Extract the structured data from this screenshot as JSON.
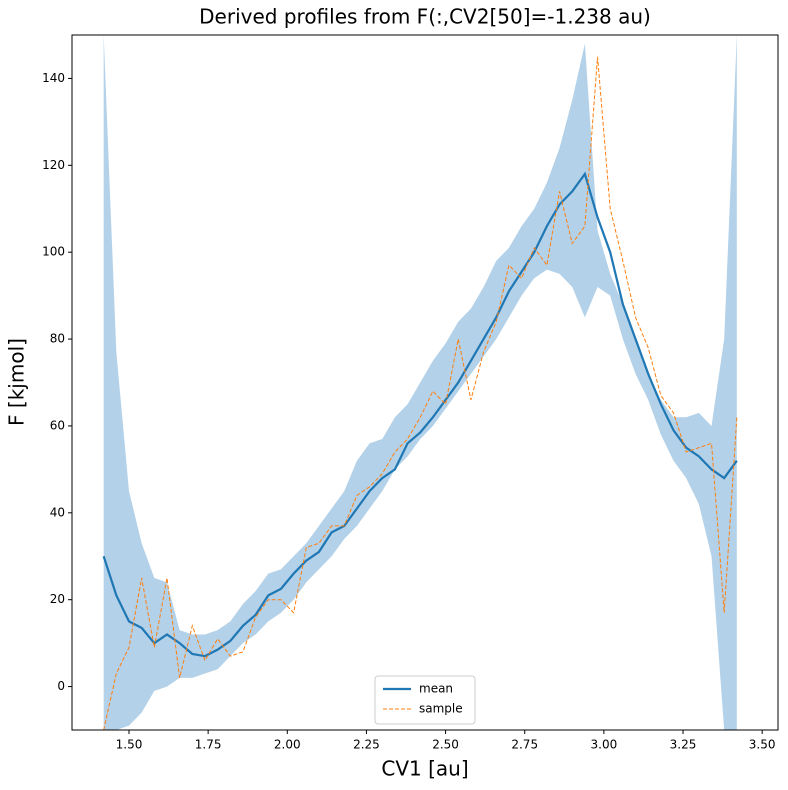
{
  "chart_data": {
    "type": "line",
    "title": "Derived profiles from F(:,CV2[50]=-1.238 au)",
    "x_label": "CV1 [au]",
    "y_label": "F [kjmol]",
    "x": [
      1.42,
      1.46,
      1.5,
      1.54,
      1.58,
      1.62,
      1.66,
      1.7,
      1.74,
      1.78,
      1.82,
      1.86,
      1.9,
      1.94,
      1.98,
      2.02,
      2.06,
      2.1,
      2.14,
      2.18,
      2.22,
      2.26,
      2.3,
      2.34,
      2.38,
      2.42,
      2.46,
      2.5,
      2.54,
      2.58,
      2.62,
      2.66,
      2.7,
      2.74,
      2.78,
      2.82,
      2.86,
      2.9,
      2.94,
      2.98,
      3.02,
      3.06,
      3.1,
      3.14,
      3.18,
      3.22,
      3.26,
      3.3,
      3.34,
      3.38,
      3.42
    ],
    "series": [
      {
        "name": "mean",
        "color": "#1f77b4",
        "values": [
          30,
          21,
          15,
          13.5,
          10,
          12,
          10,
          7.5,
          7,
          8.5,
          10.5,
          14,
          16.5,
          21,
          22.5,
          26,
          29,
          31,
          35.5,
          37,
          41,
          45,
          48,
          50,
          56,
          58.5,
          62,
          66,
          70,
          75,
          80,
          85,
          91,
          95.5,
          100,
          106,
          111,
          114,
          118,
          108,
          100,
          88,
          80,
          72,
          65,
          59,
          55,
          53,
          50,
          48,
          52
        ]
      },
      {
        "name": "sample",
        "color": "#ff7f0e",
        "dashed": true,
        "values": [
          -10,
          3,
          9,
          25,
          9,
          25,
          2,
          14,
          6,
          11,
          7,
          8,
          16,
          20,
          20,
          17,
          32,
          33,
          37,
          37,
          44,
          46,
          49,
          54,
          57,
          62,
          68,
          65,
          80,
          66,
          77,
          84,
          97,
          94,
          101,
          97,
          114,
          102,
          106,
          145,
          110,
          98,
          85,
          78,
          67,
          63,
          54,
          55,
          56,
          17,
          62
        ]
      }
    ],
    "band": {
      "color": "#b3d1e8",
      "upper": [
        150,
        77,
        45,
        33,
        25,
        24,
        13,
        12,
        12,
        13,
        15,
        19,
        22,
        26,
        27,
        30,
        33,
        37,
        41,
        45,
        52,
        56,
        57,
        62,
        65,
        70,
        75,
        79,
        84,
        87,
        92,
        98,
        101,
        106,
        110,
        116,
        124,
        135,
        148,
        105,
        95,
        88,
        80,
        72,
        66,
        62,
        62,
        63,
        60,
        80,
        150
      ],
      "lower": [
        -10,
        -10,
        -9,
        -6,
        -1,
        0,
        2,
        2,
        3,
        4,
        7,
        10,
        12,
        15,
        17,
        20,
        24,
        27,
        30,
        34,
        37,
        41,
        45,
        50,
        53,
        57,
        60,
        64,
        68,
        72,
        76,
        80,
        85,
        90,
        94,
        96,
        95,
        92,
        85,
        92,
        90,
        80,
        72,
        66,
        58,
        52,
        48,
        42,
        30,
        -10,
        -10
      ]
    },
    "xlim": [
      1.32,
      3.55
    ],
    "xticks": [
      {
        "value": 1.5,
        "label": "1.50"
      },
      {
        "value": 1.75,
        "label": "1.75"
      },
      {
        "value": 2,
        "label": "2.00"
      },
      {
        "value": 2.25,
        "label": "2.25"
      },
      {
        "value": 2.5,
        "label": "2.50"
      },
      {
        "value": 2.75,
        "label": "2.75"
      },
      {
        "value": 3,
        "label": "3.00"
      },
      {
        "value": 3.25,
        "label": "3.25"
      },
      {
        "value": 3.5,
        "label": "3.50"
      }
    ],
    "ylim": [
      -10,
      150
    ],
    "yticks": [
      0,
      20,
      40,
      60,
      80,
      100,
      120,
      140
    ],
    "legend": "lower center"
  }
}
